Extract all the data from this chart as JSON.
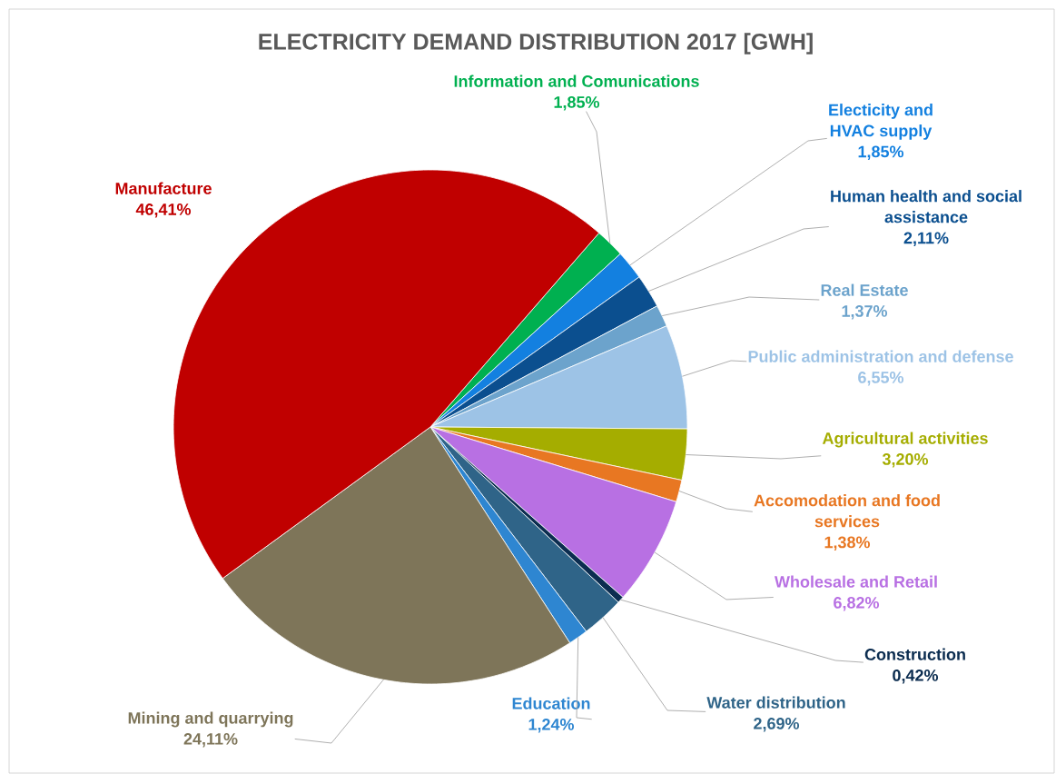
{
  "chart_data": {
    "type": "pie",
    "title": "ELECTRICITY DEMAND DISTRIBUTION 2017 [GWH]",
    "categories": [
      "Information and Comunications",
      "Electicity and HVAC supply",
      "Human health and social assistance",
      "Real Estate",
      "Public administration and defense",
      "Agricultural activities",
      "Accomodation and food services",
      "Wholesale and Retail",
      "Construction",
      "Water distribution",
      "Education",
      "Mining and quarrying",
      "Manufacture"
    ],
    "values": [
      1.85,
      1.85,
      2.11,
      1.37,
      6.55,
      3.2,
      1.38,
      6.82,
      0.42,
      2.69,
      1.24,
      24.11,
      46.41
    ],
    "value_labels": [
      "1,85%",
      "1,85%",
      "2,11%",
      "1,37%",
      "6,55%",
      "3,20%",
      "1,38%",
      "6,82%",
      "0,42%",
      "2,69%",
      "1,24%",
      "24,11%",
      "46,41%"
    ],
    "colors": [
      "#00b050",
      "#1380e0",
      "#0b4f8f",
      "#6ca3cc",
      "#9dc3e6",
      "#a5ad00",
      "#e87722",
      "#b870e3",
      "#0c2d50",
      "#2f6488",
      "#2e86d1",
      "#7e7559",
      "#c00000"
    ]
  }
}
